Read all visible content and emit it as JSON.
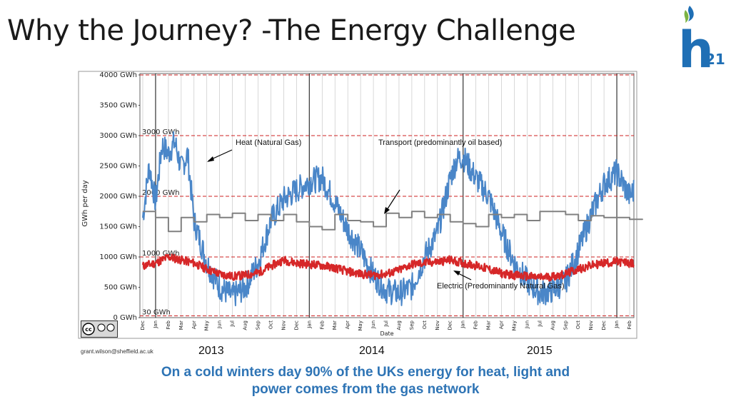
{
  "slide": {
    "title": "Why the Journey? -The Energy Challenge",
    "email": "grant.wilson@sheffield.ac.uk",
    "caption_line1": "On a cold winters day 90% of the UKs energy for heat, light and",
    "caption_line2": "power comes from the gas network",
    "logo": {
      "letter": "h",
      "subscript": "21",
      "icon": "flame-icon",
      "color": "#1f6fb5",
      "accent": "#7cb342"
    },
    "years": [
      "2013",
      "2014",
      "2015"
    ]
  },
  "chart_data": {
    "type": "line",
    "ylabel": "GWh per day",
    "xlabel": "Date",
    "ylim": [
      0,
      4000
    ],
    "y_ticks": [
      "4000 GWh",
      "3500 GWh",
      "3000 GWh",
      "2500 GWh",
      "2000 GWh",
      "1500 GWh",
      "1000 GWh",
      "500 GWh",
      "0 GWh"
    ],
    "x_ticks": [
      "Dec",
      "Jan",
      "Feb",
      "Mar",
      "Apr",
      "May",
      "Jun",
      "Jul",
      "Aug",
      "Sep",
      "Oct",
      "Nov",
      "Dec",
      "Jan",
      "Feb",
      "Mar",
      "Apr",
      "May",
      "Jun",
      "Jul",
      "Aug",
      "Sep",
      "Oct",
      "Nov",
      "Dec",
      "Jan",
      "Feb",
      "Mar",
      "Apr",
      "May",
      "Jun",
      "Jul",
      "Aug",
      "Sep",
      "Oct",
      "Nov",
      "Dec",
      "Jan",
      "Feb"
    ],
    "reference_lines": [
      {
        "label": "3000 GWh",
        "value": 3000
      },
      {
        "label": "2000 GWh",
        "value": 2000
      },
      {
        "label": "1000 GWh",
        "value": 1000
      },
      {
        "label": "30 GWh",
        "value": 30
      }
    ],
    "annotations": [
      "Heat (Natural Gas)",
      "Transport (predominantly oil based)",
      "Electric (Predominantly Natural Gas)"
    ],
    "colors": {
      "heat": "#4a86c8",
      "transport": "#808080",
      "electric": "#d62728",
      "reference": "#cc2222"
    },
    "series": [
      {
        "name": "Heat (Natural Gas)",
        "months": [
          0,
          0.5,
          1,
          1.5,
          2,
          2.5,
          3,
          3.5,
          4,
          5,
          6,
          7,
          8,
          9,
          10,
          11,
          12,
          13,
          14,
          15,
          16,
          17,
          18,
          19,
          20,
          21,
          22,
          23,
          24,
          24.5,
          25,
          26,
          27,
          28,
          29,
          30,
          31,
          32,
          33,
          34,
          35,
          36,
          37,
          38,
          39
        ],
        "values": [
          1650,
          2500,
          1900,
          2850,
          2700,
          2900,
          2450,
          2700,
          1600,
          900,
          500,
          350,
          500,
          900,
          1600,
          1950,
          2100,
          2250,
          2300,
          1900,
          1450,
          1100,
          700,
          450,
          400,
          500,
          1000,
          1400,
          2300,
          2600,
          2650,
          2300,
          2000,
          1400,
          900,
          600,
          400,
          450,
          600,
          1100,
          1700,
          2200,
          2400,
          2000,
          2300
        ]
      },
      {
        "name": "Transport (predominantly oil based)",
        "months": [
          0,
          1,
          2,
          3,
          4,
          5,
          6,
          7,
          8,
          9,
          10,
          11,
          12,
          13,
          14,
          15,
          16,
          17,
          18,
          19,
          20,
          21,
          22,
          23,
          24,
          25,
          26,
          27,
          28,
          29,
          30,
          31,
          32,
          33,
          34,
          35,
          36,
          37,
          38,
          39
        ],
        "values": [
          1750,
          1650,
          1420,
          1650,
          1580,
          1700,
          1650,
          1720,
          1600,
          1700,
          1600,
          1700,
          1580,
          1500,
          1450,
          1700,
          1600,
          1580,
          1500,
          1720,
          1650,
          1750,
          1650,
          1700,
          1580,
          1550,
          1500,
          1700,
          1650,
          1700,
          1600,
          1750,
          1750,
          1700,
          1600,
          1680,
          1650,
          1650,
          1620,
          1620
        ]
      },
      {
        "name": "Electric (Predominantly Natural Gas)",
        "months": [
          0,
          1,
          2,
          3,
          4,
          5,
          6,
          7,
          8,
          9,
          10,
          11,
          12,
          13,
          14,
          15,
          16,
          17,
          18,
          19,
          20,
          21,
          22,
          23,
          24,
          25,
          26,
          27,
          28,
          29,
          30,
          31,
          32,
          33,
          34,
          35,
          36,
          37,
          38,
          39
        ],
        "values": [
          850,
          900,
          1000,
          950,
          900,
          800,
          720,
          680,
          700,
          740,
          850,
          950,
          900,
          880,
          860,
          820,
          760,
          720,
          700,
          720,
          780,
          880,
          900,
          920,
          950,
          900,
          860,
          800,
          730,
          700,
          680,
          660,
          680,
          720,
          800,
          860,
          900,
          920,
          900,
          860
        ]
      }
    ]
  }
}
